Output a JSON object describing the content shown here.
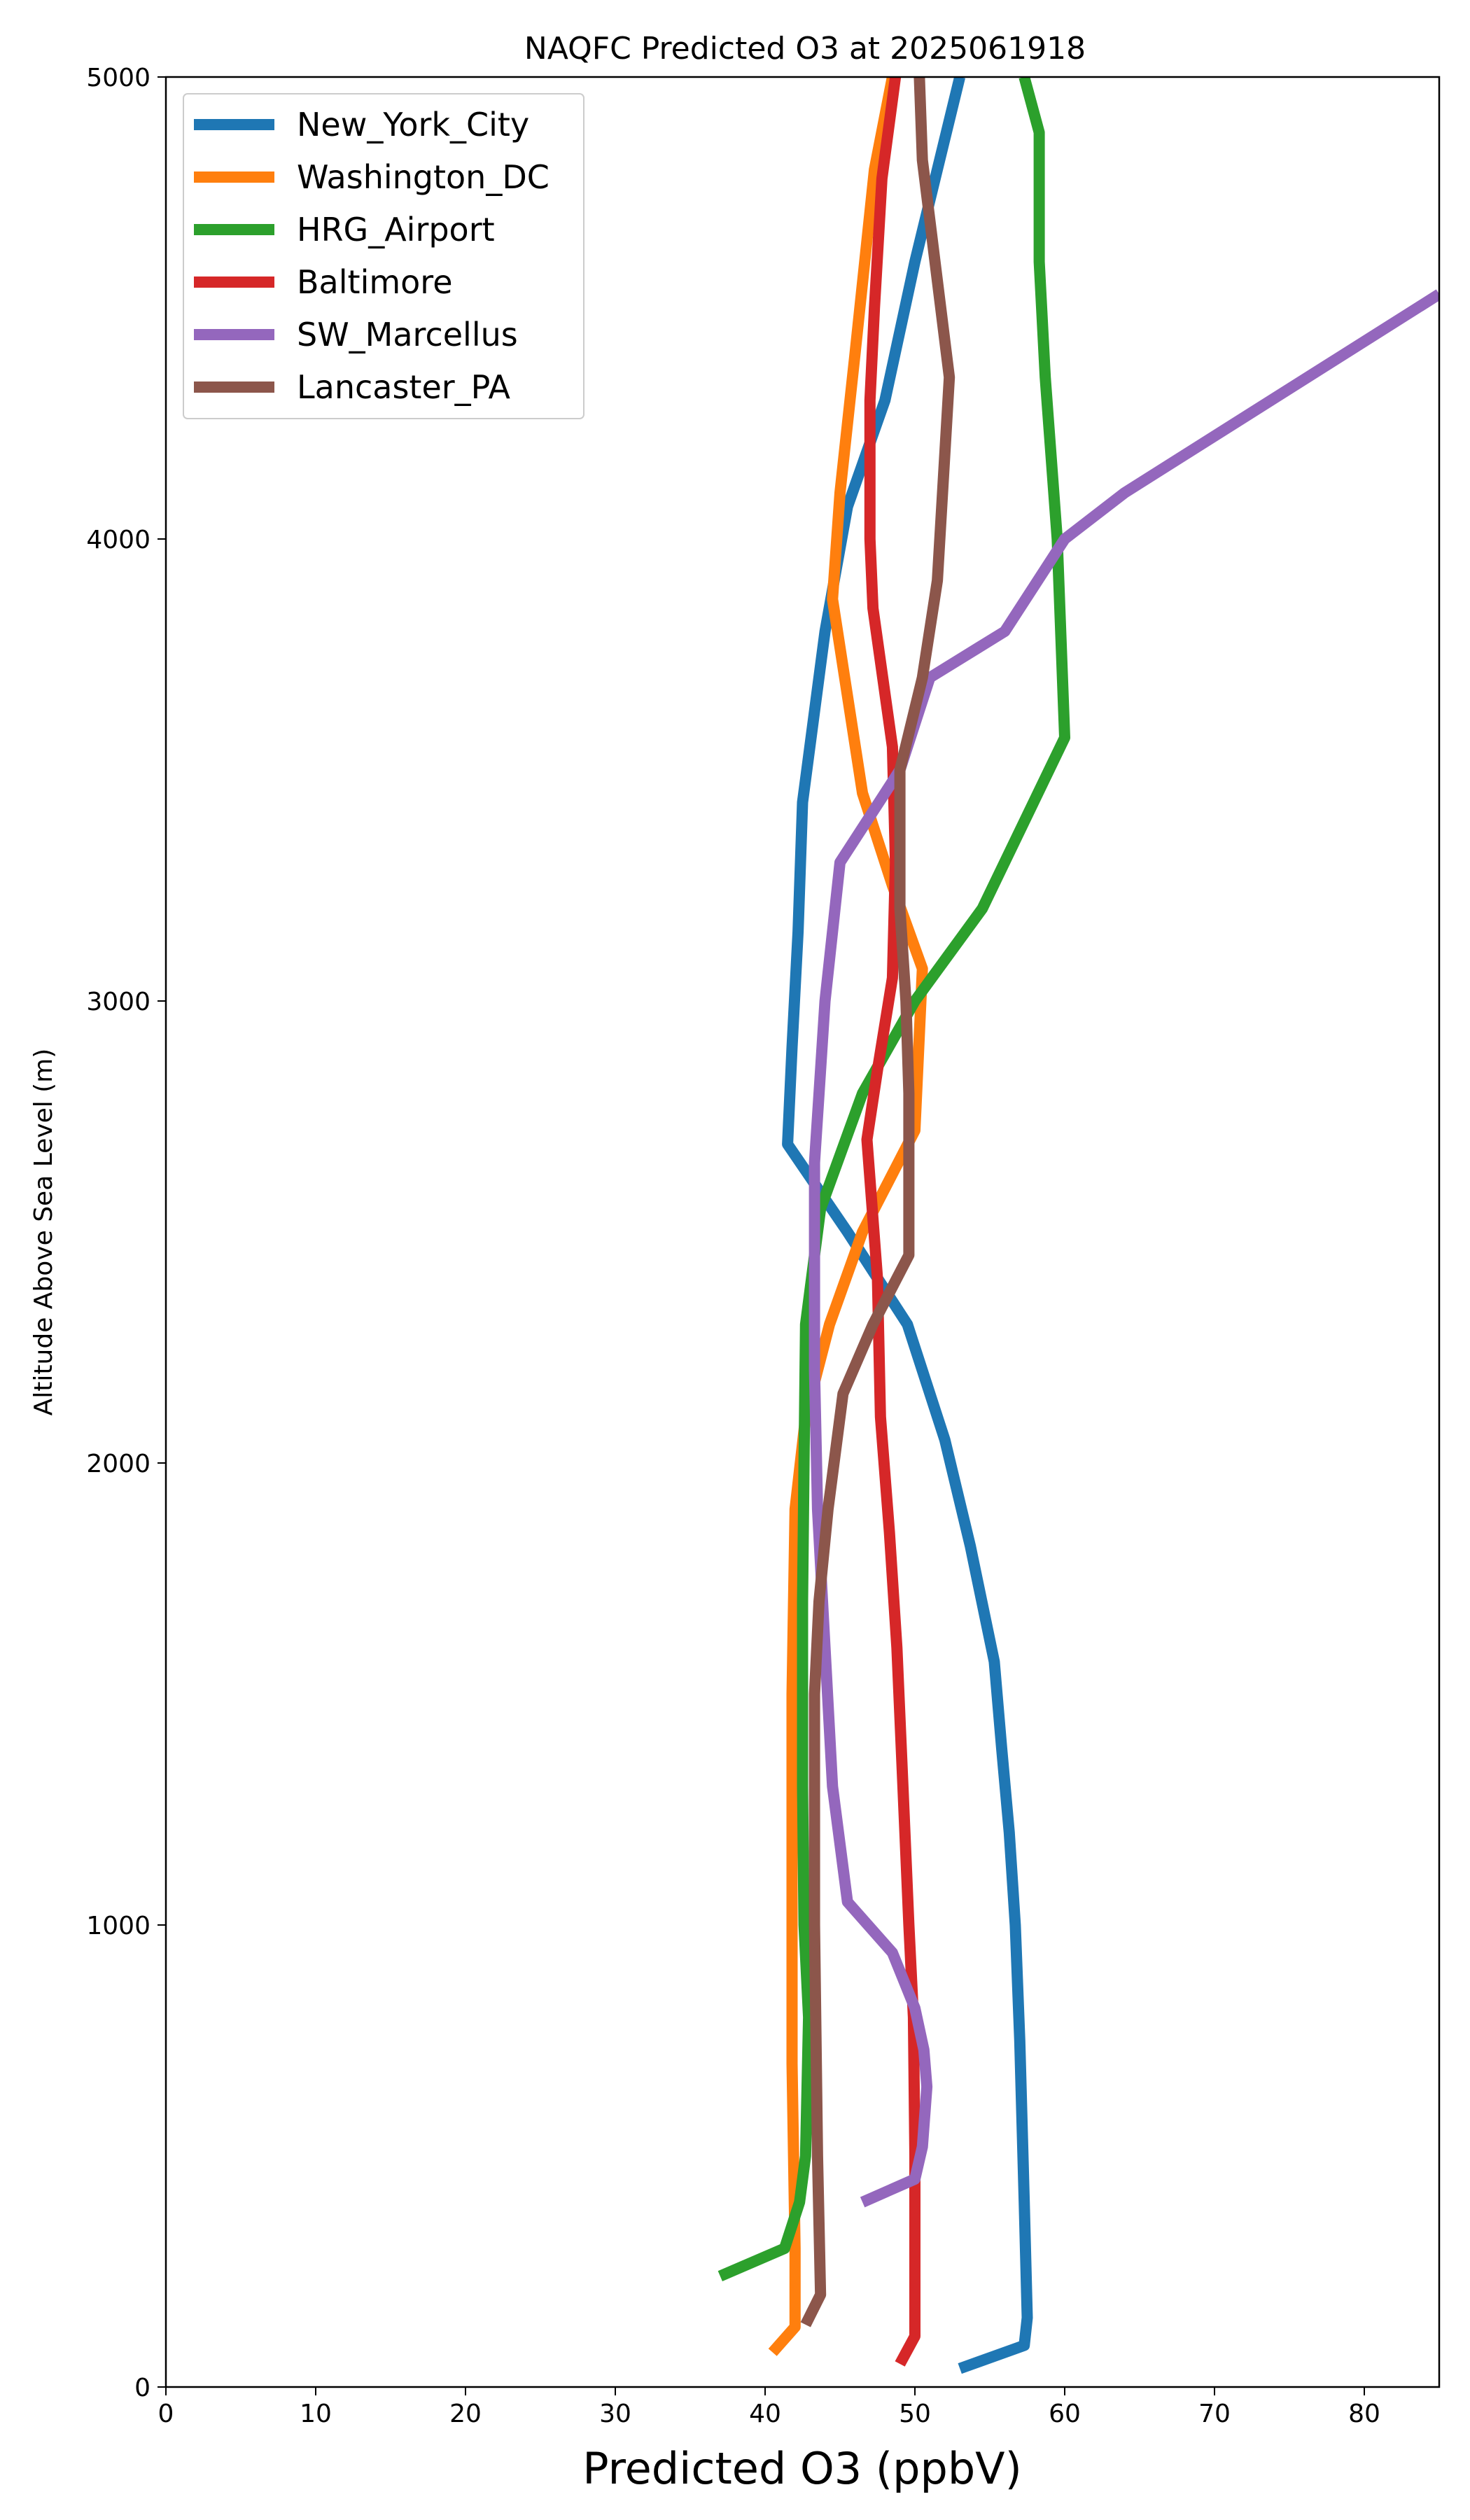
{
  "chart_data": {
    "type": "line",
    "title": "NAQFC Predicted O3 at 2025061918",
    "xlabel": "Predicted O3 (ppbV)",
    "ylabel": "Altitude Above Sea Level (m)",
    "xlim": [
      0,
      85
    ],
    "ylim": [
      0,
      5000
    ],
    "xticks": [
      0,
      10,
      20,
      30,
      40,
      50,
      60,
      70,
      80
    ],
    "yticks": [
      0,
      1000,
      2000,
      3000,
      4000,
      5000
    ],
    "grid": false,
    "legend_position": "top-left",
    "series": [
      {
        "name": "New_York_City",
        "color": "#1f77b4",
        "points": [
          [
            53,
            40
          ],
          [
            57.3,
            90
          ],
          [
            57.5,
            150
          ],
          [
            57.3,
            400
          ],
          [
            57,
            750
          ],
          [
            56.7,
            1000
          ],
          [
            56.3,
            1200
          ],
          [
            55.8,
            1380
          ],
          [
            55.3,
            1570
          ],
          [
            53.7,
            1820
          ],
          [
            52,
            2050
          ],
          [
            49.5,
            2300
          ],
          [
            45.5,
            2500
          ],
          [
            41.5,
            2690
          ],
          [
            41.8,
            2900
          ],
          [
            42.2,
            3150
          ],
          [
            42.5,
            3430
          ],
          [
            44,
            3800
          ],
          [
            45.5,
            4070
          ],
          [
            48,
            4300
          ],
          [
            50,
            4600
          ],
          [
            53,
            5000
          ]
        ]
      },
      {
        "name": "Washington_DC",
        "color": "#ff7f0e",
        "points": [
          [
            40.5,
            75
          ],
          [
            42,
            130
          ],
          [
            42,
            300
          ],
          [
            41.8,
            700
          ],
          [
            41.8,
            1000
          ],
          [
            41.8,
            1500
          ],
          [
            42,
            1900
          ],
          [
            42.7,
            2100
          ],
          [
            44.3,
            2300
          ],
          [
            46.5,
            2500
          ],
          [
            50,
            2720
          ],
          [
            50.5,
            3070
          ],
          [
            48.5,
            3250
          ],
          [
            46.5,
            3450
          ],
          [
            44.5,
            3870
          ],
          [
            45,
            4100
          ],
          [
            46,
            4400
          ],
          [
            47.3,
            4800
          ],
          [
            48.5,
            5000
          ]
        ]
      },
      {
        "name": "HRG_Airport",
        "color": "#2ca02c",
        "points": [
          [
            37,
            240
          ],
          [
            41.3,
            300
          ],
          [
            42.3,
            400
          ],
          [
            42.7,
            500
          ],
          [
            42.9,
            800
          ],
          [
            42.6,
            1000
          ],
          [
            42.5,
            1300
          ],
          [
            42.5,
            1700
          ],
          [
            42.6,
            2000
          ],
          [
            42.7,
            2300
          ],
          [
            43.7,
            2550
          ],
          [
            46.5,
            2800
          ],
          [
            50,
            3000
          ],
          [
            54.5,
            3200
          ],
          [
            60,
            3570
          ],
          [
            59.5,
            4000
          ],
          [
            58.7,
            4350
          ],
          [
            58.3,
            4600
          ],
          [
            58.3,
            4880
          ],
          [
            57.3,
            5000
          ]
        ]
      },
      {
        "name": "Baltimore",
        "color": "#d62728",
        "points": [
          [
            49,
            50
          ],
          [
            50,
            110
          ],
          [
            50,
            200
          ],
          [
            50,
            500
          ],
          [
            49.9,
            800
          ],
          [
            49.6,
            1000
          ],
          [
            49.2,
            1300
          ],
          [
            48.8,
            1600
          ],
          [
            48.3,
            1850
          ],
          [
            47.7,
            2100
          ],
          [
            47.5,
            2400
          ],
          [
            46.8,
            2700
          ],
          [
            47.5,
            2850
          ],
          [
            48.5,
            3050
          ],
          [
            48.7,
            3300
          ],
          [
            48.5,
            3550
          ],
          [
            47.2,
            3850
          ],
          [
            47,
            4000
          ],
          [
            47,
            4300
          ],
          [
            47.3,
            4500
          ],
          [
            47.8,
            4780
          ],
          [
            48.7,
            5000
          ]
        ]
      },
      {
        "name": "SW_Marcellus",
        "color": "#9467bd",
        "points": [
          [
            46.5,
            400
          ],
          [
            50,
            450
          ],
          [
            50.5,
            520
          ],
          [
            50.8,
            650
          ],
          [
            50.6,
            730
          ],
          [
            50,
            820
          ],
          [
            48.5,
            940
          ],
          [
            45.5,
            1050
          ],
          [
            44.5,
            1300
          ],
          [
            44,
            1600
          ],
          [
            43.5,
            1900
          ],
          [
            43.3,
            2200
          ],
          [
            43.3,
            2400
          ],
          [
            43.3,
            2650
          ],
          [
            43.7,
            2850
          ],
          [
            44,
            3000
          ],
          [
            45,
            3300
          ],
          [
            49,
            3500
          ],
          [
            51,
            3700
          ],
          [
            56,
            3800
          ],
          [
            60,
            4000
          ],
          [
            64,
            4100
          ],
          [
            85,
            4530
          ]
        ]
      },
      {
        "name": "Lancaster_PA",
        "color": "#8c564b",
        "points": [
          [
            42.7,
            135
          ],
          [
            43.7,
            200
          ],
          [
            43.5,
            500
          ],
          [
            43.3,
            1000
          ],
          [
            43.3,
            1500
          ],
          [
            43.6,
            1700
          ],
          [
            44.2,
            1900
          ],
          [
            45.2,
            2150
          ],
          [
            47.2,
            2300
          ],
          [
            49.6,
            2450
          ],
          [
            49.6,
            2800
          ],
          [
            49.4,
            3000
          ],
          [
            49,
            3200
          ],
          [
            49,
            3500
          ],
          [
            50.5,
            3700
          ],
          [
            51.5,
            3910
          ],
          [
            52.3,
            4350
          ],
          [
            50.5,
            4820
          ],
          [
            50.3,
            5000
          ]
        ]
      }
    ]
  }
}
